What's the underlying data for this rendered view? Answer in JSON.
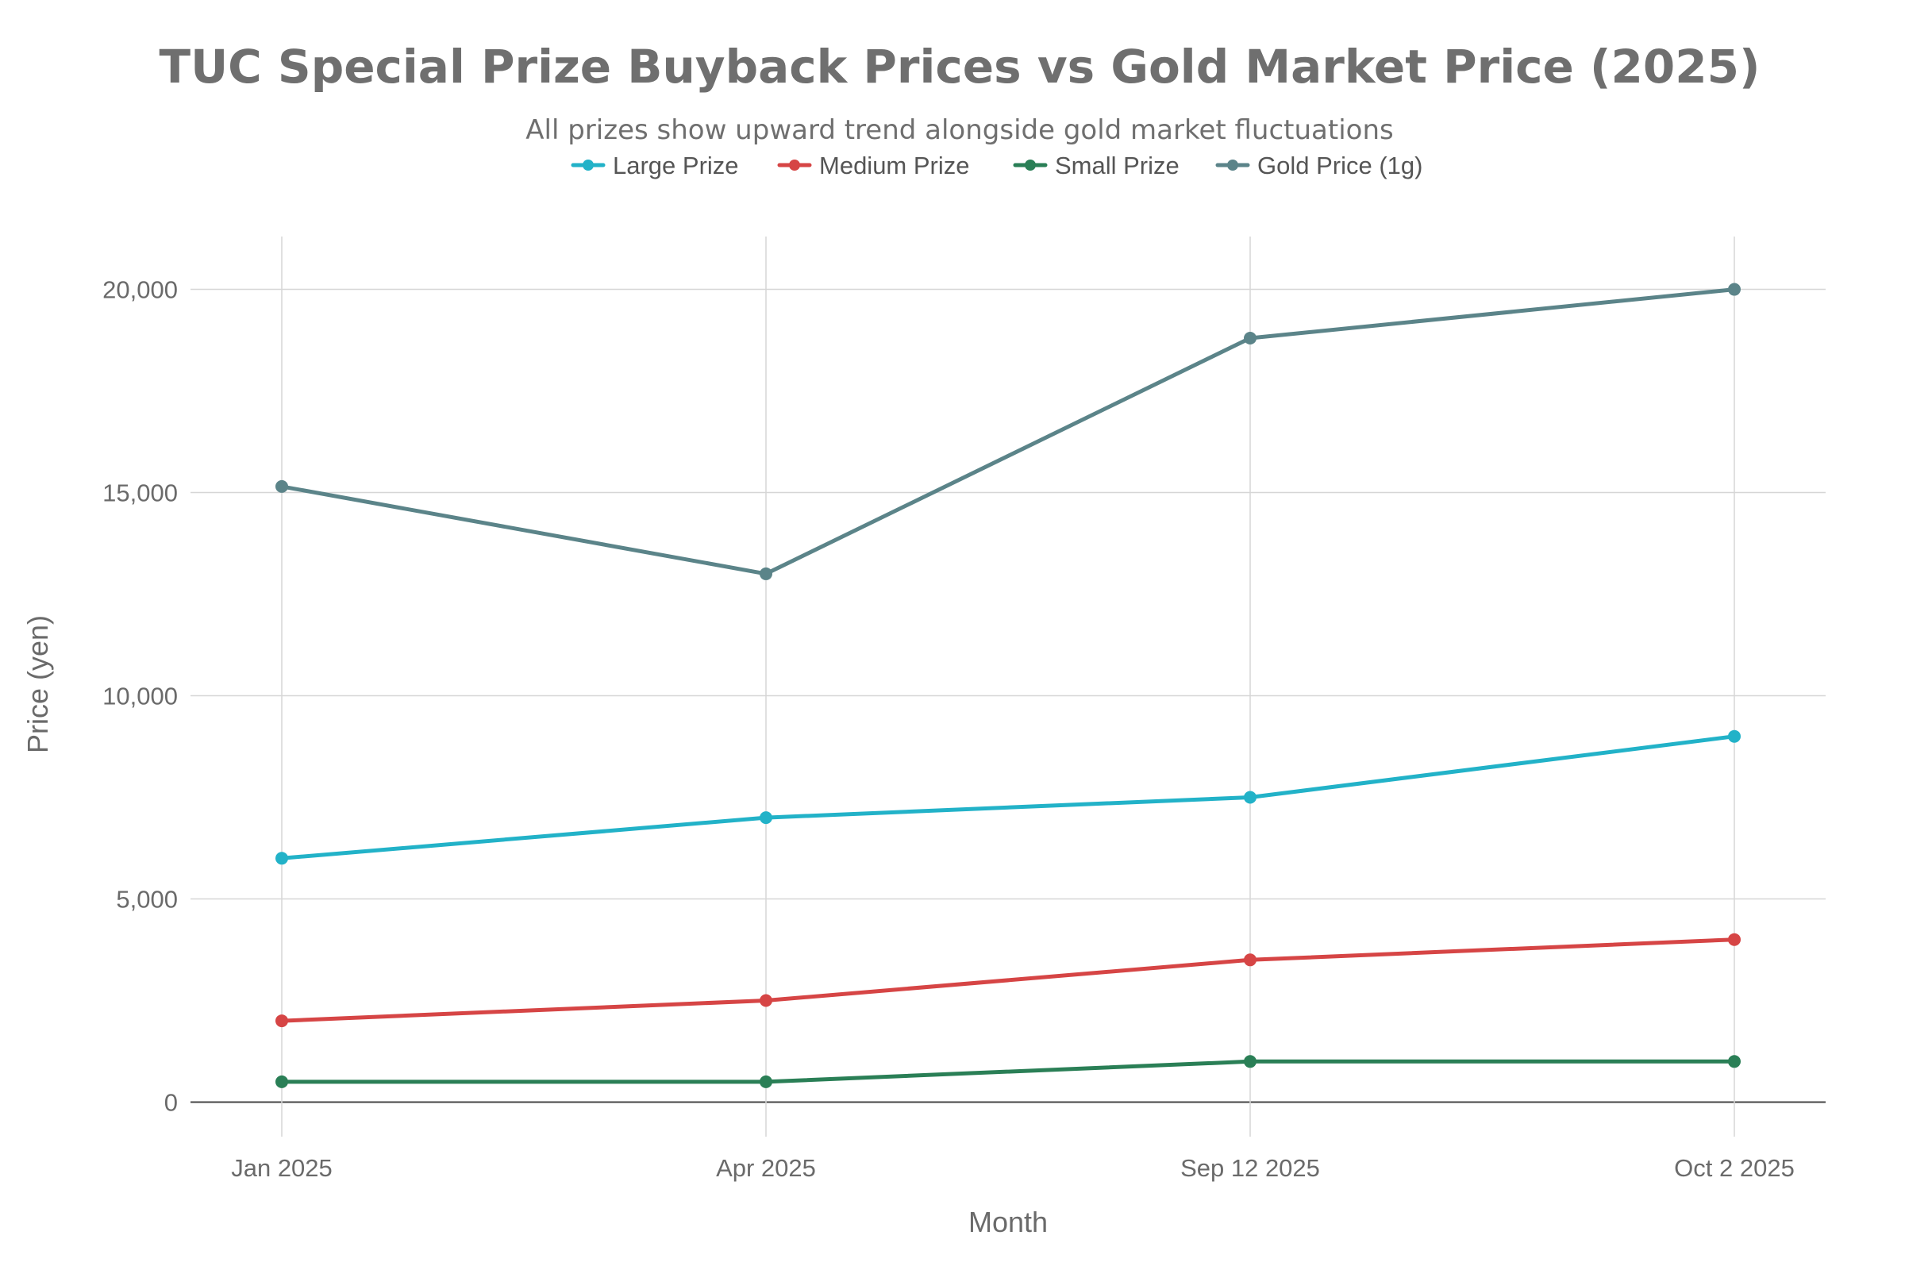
{
  "chart_data": {
    "type": "line",
    "title": "TUC Special Prize Buyback Prices vs Gold Market Price (2025)",
    "subtitle": "All prizes show upward trend alongside gold market fluctuations",
    "xlabel": "Month",
    "ylabel": "Price (yen)",
    "categories": [
      "Jan 2025",
      "Apr 2025",
      "Sep 12 2025",
      "Oct 2 2025"
    ],
    "ylim": [
      -850,
      21300
    ],
    "yticks": [
      0,
      5000,
      10000,
      15000,
      20000
    ],
    "ytick_labels": [
      "0",
      "5,000",
      "10,000",
      "15,000",
      "20,000"
    ],
    "grid": true,
    "legend_position": "top-center",
    "series": [
      {
        "name": "Large Prize",
        "color": "#22b2c8",
        "values": [
          6000,
          7000,
          7500,
          9000
        ]
      },
      {
        "name": "Medium Prize",
        "color": "#d64545",
        "values": [
          2000,
          2500,
          3500,
          4000
        ]
      },
      {
        "name": "Small Prize",
        "color": "#2a7f56",
        "values": [
          500,
          500,
          1000,
          1000
        ]
      },
      {
        "name": "Gold Price (1g)",
        "color": "#5b8489",
        "values": [
          15150,
          13000,
          18800,
          20000
        ]
      }
    ]
  }
}
